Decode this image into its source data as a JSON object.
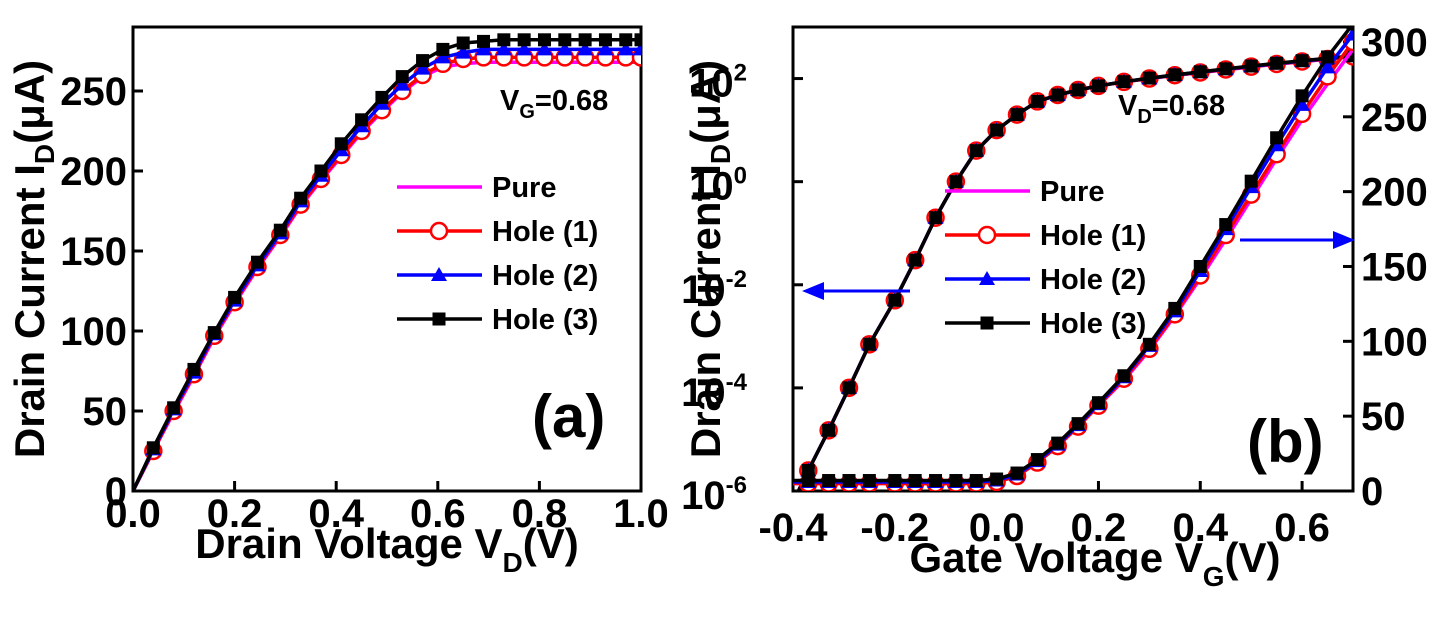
{
  "chart_data": [
    {
      "type": "line",
      "panel_label": "(a)",
      "annotation": {
        "main": "V",
        "sub": "G",
        "rest": "=0.68"
      },
      "xlabel": {
        "main": "Drain Voltage V",
        "sub": "D",
        "rest": "(V)"
      },
      "ylabel": {
        "main": "Drain Current I",
        "sub": "D",
        "rest": "(μA)"
      },
      "xlim": [
        0,
        1.0
      ],
      "ylim": [
        0,
        290
      ],
      "xticks": [
        "0.0",
        "0.2",
        "0.4",
        "0.6",
        "0.8",
        "1.0"
      ],
      "yticks": [
        "0",
        "50",
        "100",
        "150",
        "200",
        "250"
      ],
      "legend_placement": "right-center",
      "grid": false,
      "x": [
        0,
        0.04,
        0.08,
        0.12,
        0.16,
        0.2,
        0.245,
        0.29,
        0.33,
        0.37,
        0.41,
        0.45,
        0.49,
        0.53,
        0.57,
        0.61,
        0.65,
        0.69,
        0.73,
        0.77,
        0.81,
        0.85,
        0.89,
        0.93,
        0.97,
        1.0
      ],
      "series": [
        {
          "name": "Pure",
          "color": "#ff00ff",
          "marker": "none",
          "values": [
            0,
            25,
            49,
            72,
            96,
            117,
            139,
            159,
            178,
            194,
            209,
            224,
            237,
            249,
            259,
            265,
            267,
            268,
            268,
            268,
            268,
            268,
            268,
            268,
            268,
            268
          ]
        },
        {
          "name": "Hole (1)",
          "color": "#ff0000",
          "marker": "circle",
          "values": [
            0,
            25,
            50,
            73,
            97,
            118,
            140,
            160,
            179,
            195,
            210,
            225,
            238,
            250,
            260,
            267,
            270,
            271,
            271,
            271,
            271,
            271,
            271,
            271,
            271,
            271
          ]
        },
        {
          "name": "Hole (2)",
          "color": "#0000ff",
          "marker": "triangle",
          "values": [
            0,
            26,
            51,
            74,
            98,
            119,
            141,
            161,
            181,
            197,
            213,
            228,
            242,
            254,
            264,
            271,
            274,
            276,
            276,
            276,
            276,
            276,
            276,
            276,
            276,
            276
          ]
        },
        {
          "name": "Hole (3)",
          "color": "#000000",
          "marker": "square",
          "values": [
            0,
            27,
            52,
            76,
            99,
            121,
            143,
            163,
            183,
            200,
            217,
            232,
            246,
            259,
            269,
            276,
            280,
            281,
            282,
            282,
            282,
            282,
            282,
            282,
            282,
            282
          ]
        }
      ]
    },
    {
      "type": "line",
      "panel_label": "(b)",
      "annotation": {
        "main": "V",
        "sub": "D",
        "rest": "=0.68"
      },
      "xlabel": {
        "main": "Gate Voltage V",
        "sub": "G",
        "rest": "(V)"
      },
      "ylabel": {
        "main": "Drain Current I",
        "sub": "D",
        "rest": "(μA)"
      },
      "xlim": [
        -0.4,
        0.7
      ],
      "y_left_scale": "log",
      "y_left_lim": [
        1e-06,
        1000
      ],
      "y_right_lim": [
        0,
        310
      ],
      "xticks": [
        "-0.4",
        "-0.2",
        "0.0",
        "0.2",
        "0.4",
        "0.6"
      ],
      "y_left_ticks": [
        {
          "base": "10",
          "exp": "-6"
        },
        {
          "base": "10",
          "exp": "-4"
        },
        {
          "base": "10",
          "exp": "-2"
        },
        {
          "base": "10",
          "exp": "0"
        },
        {
          "base": "10",
          "exp": "2"
        }
      ],
      "y_right_ticks": [
        "0",
        "50",
        "100",
        "150",
        "200",
        "250",
        "300"
      ],
      "legend_placement": "center",
      "grid": false,
      "arrows": [
        {
          "points_to": "left axis",
          "color": "#0000ff"
        },
        {
          "points_to": "right axis",
          "color": "#0000ff"
        }
      ],
      "x": [
        -0.4,
        -0.37,
        -0.33,
        -0.29,
        -0.25,
        -0.2,
        -0.16,
        -0.12,
        -0.08,
        -0.04,
        0.0,
        0.04,
        0.08,
        0.12,
        0.16,
        0.2,
        0.25,
        0.3,
        0.35,
        0.4,
        0.45,
        0.5,
        0.55,
        0.6,
        0.65,
        0.7
      ],
      "log_series": [
        {
          "name": "Pure",
          "color": "#ff00ff",
          "values": [
            6e-07,
            2.5e-06,
            1.5e-05,
            0.0001,
            0.0007,
            0.005,
            0.03,
            0.2,
            1.0,
            4.0,
            10,
            20,
            36,
            48,
            60,
            72,
            86,
            100,
            115,
            130,
            148,
            168,
            190,
            212,
            238,
            265
          ]
        },
        {
          "name": "Hole (1)",
          "color": "#ff0000",
          "values": [
            6e-07,
            2.5e-06,
            1.5e-05,
            0.0001,
            0.0007,
            0.005,
            0.03,
            0.2,
            1.0,
            4.0,
            10,
            20,
            36,
            48,
            60,
            72,
            86,
            100,
            116,
            131,
            150,
            170,
            192,
            214,
            240,
            268
          ]
        },
        {
          "name": "Hole (2)",
          "color": "#0000ff",
          "values": [
            6e-07,
            2.5e-06,
            1.5e-05,
            0.0001,
            0.0007,
            0.005,
            0.03,
            0.2,
            1.0,
            4.0,
            10,
            20,
            36,
            48,
            60,
            72,
            87,
            101,
            117,
            133,
            152,
            172,
            195,
            218,
            244,
            272
          ]
        },
        {
          "name": "Hole (3)",
          "color": "#000000",
          "values": [
            6e-07,
            2.5e-06,
            1.5e-05,
            0.0001,
            0.0007,
            0.005,
            0.03,
            0.2,
            1.0,
            4.0,
            10,
            20,
            36,
            48,
            60,
            72,
            87,
            102,
            118,
            135,
            154,
            175,
            198,
            222,
            248,
            276
          ]
        }
      ],
      "linear_series": [
        {
          "name": "Pure",
          "color": "#ff00ff",
          "values": [
            5,
            5,
            5,
            5,
            5,
            5,
            5,
            5,
            5,
            5,
            6,
            10,
            19,
            30,
            43,
            57,
            74,
            94,
            117,
            142,
            168,
            195,
            222,
            248,
            272,
            295
          ]
        },
        {
          "name": "Hole (1)",
          "color": "#ff0000",
          "values": [
            5,
            5,
            5,
            5,
            5,
            5,
            5,
            5,
            5,
            5,
            6,
            10,
            19,
            30,
            43,
            57,
            75,
            95,
            118,
            144,
            171,
            198,
            225,
            252,
            277,
            300
          ]
        },
        {
          "name": "Hole (2)",
          "color": "#0000ff",
          "values": [
            6,
            6,
            6,
            6,
            6,
            6,
            6,
            6,
            6,
            6,
            7,
            11,
            20,
            31,
            44,
            58,
            76,
            97,
            120,
            147,
            175,
            203,
            231,
            258,
            283,
            305
          ]
        },
        {
          "name": "Hole (3)",
          "color": "#000000",
          "values": [
            7,
            7,
            7,
            7,
            7,
            7,
            7,
            7,
            7,
            7,
            8,
            12,
            21,
            32,
            45,
            59,
            77,
            98,
            122,
            150,
            178,
            207,
            236,
            264,
            290,
            312
          ]
        }
      ]
    }
  ],
  "legend": [
    {
      "label": "Pure",
      "color": "#ff00ff",
      "marker": "none"
    },
    {
      "label": "Hole (1)",
      "color": "#ff0000",
      "marker": "circle"
    },
    {
      "label": "Hole (2)",
      "color": "#0000ff",
      "marker": "triangle"
    },
    {
      "label": "Hole (3)",
      "color": "#000000",
      "marker": "square"
    }
  ]
}
